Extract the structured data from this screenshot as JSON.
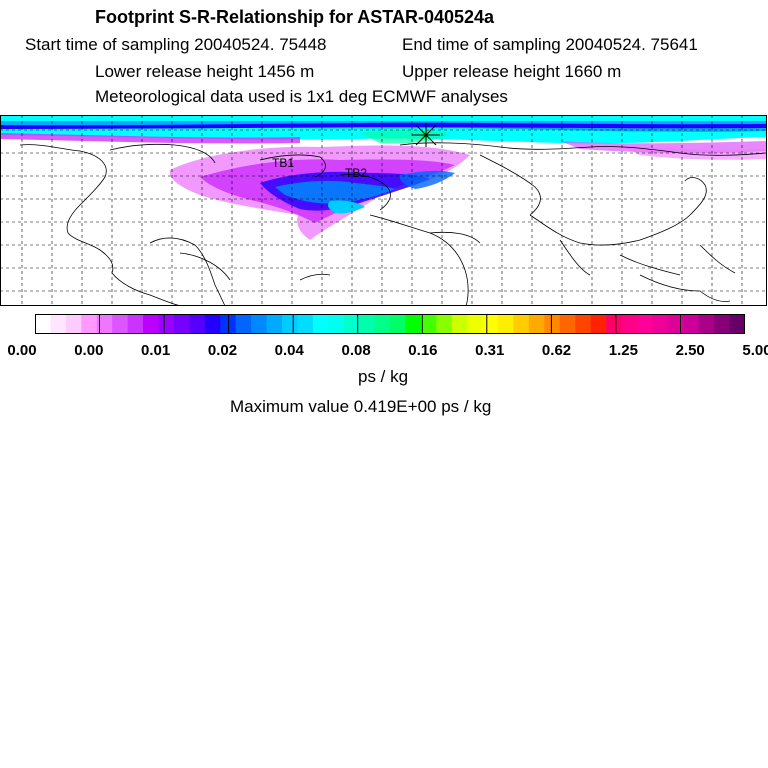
{
  "header": {
    "title": "Footprint S-R-Relationship for ASTAR-040524a",
    "start": "Start time of sampling 20040524. 75448",
    "end": "End time of sampling 20040524. 75641",
    "lower": "Lower release height 1456 m",
    "upper": "Upper release height 1660 m",
    "met": "Meteorological data used is 1x1 deg ECMWF analyses"
  },
  "map": {
    "label_1": "TB1",
    "label_2": "TB2"
  },
  "colorbar": {
    "ticks": [
      "0.00",
      "0.00",
      "0.01",
      "0.02",
      "0.04",
      "0.08",
      "0.16",
      "0.31",
      "0.62",
      "1.25",
      "2.50",
      "5.00"
    ],
    "colors": [
      "#ffffff",
      "#ffe6ff",
      "#ffccff",
      "#ff99ff",
      "#ee77ff",
      "#dd55ff",
      "#cc33ff",
      "#bb00ff",
      "#9900ff",
      "#7700ff",
      "#5500ff",
      "#2200ff",
      "#0033ff",
      "#0066ff",
      "#0088ff",
      "#00aaff",
      "#00ccff",
      "#00ddff",
      "#00ffff",
      "#00ffee",
      "#00ffcc",
      "#00ffaa",
      "#00ff88",
      "#00ff66",
      "#00ff00",
      "#44ff00",
      "#88ff00",
      "#ccff00",
      "#eeff00",
      "#ffff00",
      "#ffee00",
      "#ffcc00",
      "#ffaa00",
      "#ff8800",
      "#ff6600",
      "#ff4400",
      "#ff2200",
      "#ff0066",
      "#ff0088",
      "#ff0099",
      "#ee0099",
      "#dd0099",
      "#cc0099",
      "#aa0088",
      "#880077",
      "#660066"
    ]
  },
  "footer": {
    "units": "ps / kg",
    "max": "Maximum value  0.419E+00 ps / kg"
  }
}
